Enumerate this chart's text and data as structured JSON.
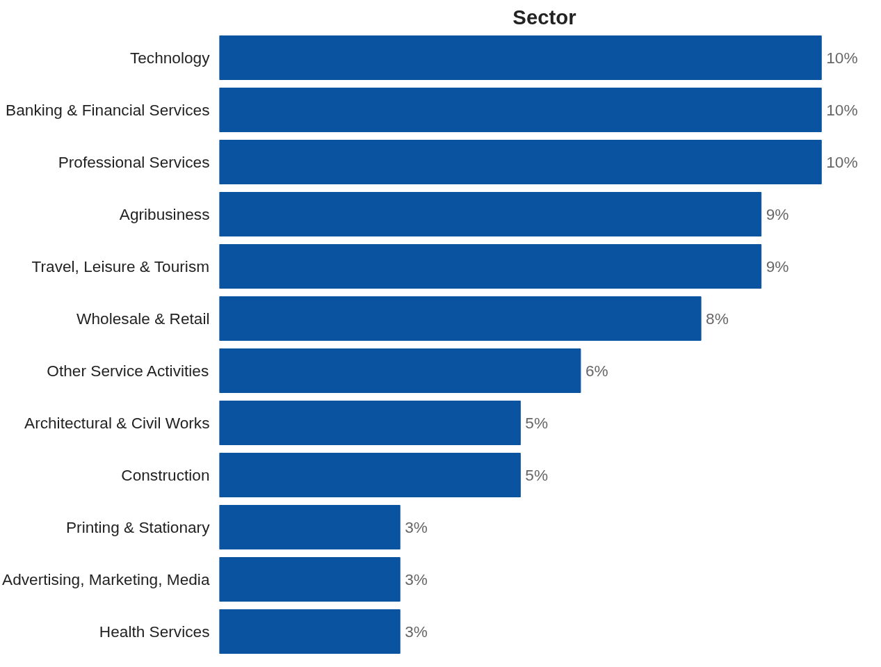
{
  "chart_data": {
    "type": "bar",
    "title": "Sector",
    "orientation": "horizontal",
    "categories": [
      "Technology",
      "Banking & Financial Services",
      "Professional Services",
      "Agribusiness",
      "Travel, Leisure & Tourism",
      "Wholesale & Retail",
      "Other Service Activities",
      "Architectural & Civil Works",
      "Construction",
      "Printing & Stationary",
      "Advertising, Marketing, Media",
      "Health Services"
    ],
    "values": [
      10,
      10,
      10,
      9,
      9,
      8,
      6,
      5,
      5,
      3,
      3,
      3
    ],
    "value_labels": [
      "10%",
      "10%",
      "10%",
      "9%",
      "9%",
      "8%",
      "6%",
      "5%",
      "5%",
      "3%",
      "3%",
      "3%"
    ],
    "color": "#0a53a0",
    "grid": false
  }
}
